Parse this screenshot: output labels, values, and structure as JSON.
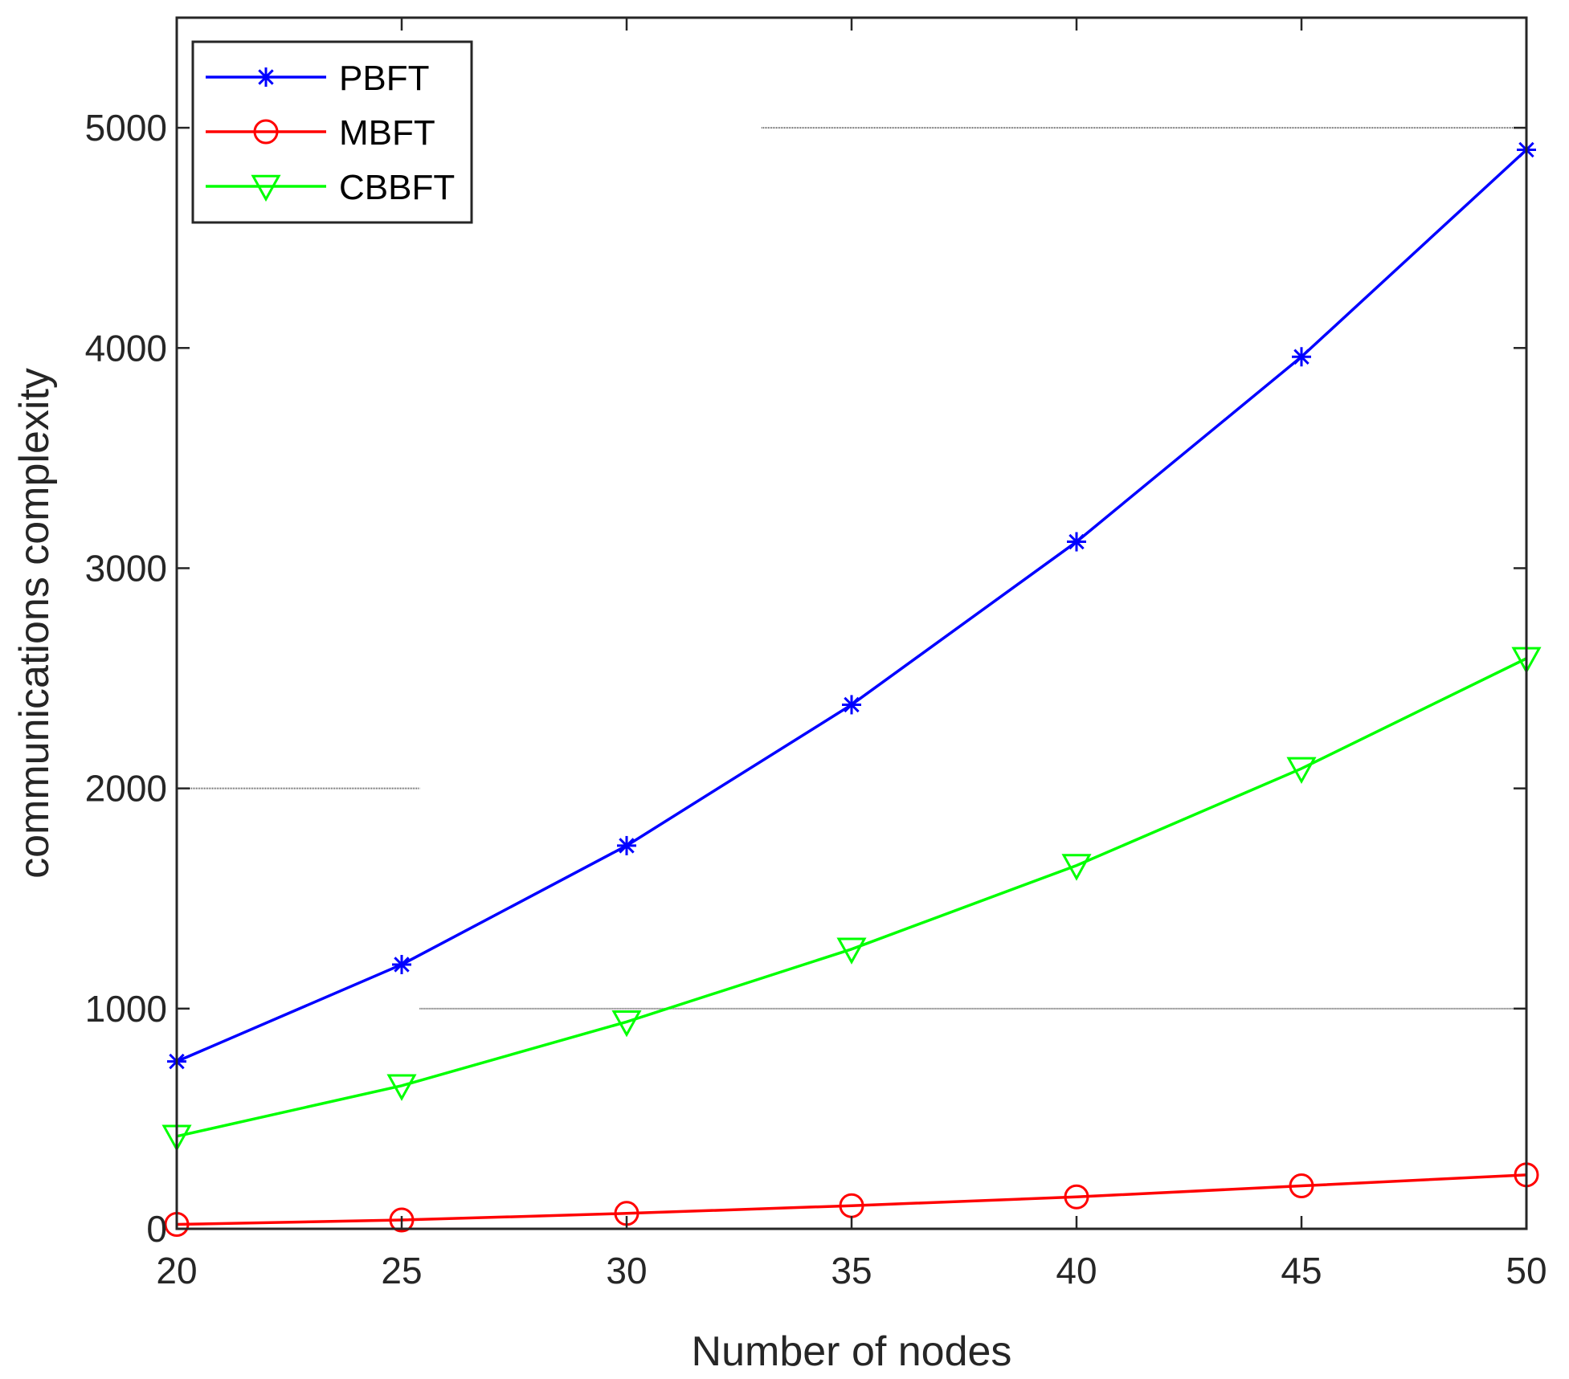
{
  "chart_data": {
    "type": "line",
    "xlabel": "Number of nodes",
    "ylabel": "communications complexity",
    "x": [
      20,
      25,
      30,
      35,
      40,
      45,
      50
    ],
    "xlim": [
      20,
      50
    ],
    "ylim": [
      0,
      5500
    ],
    "xticks": [
      "20",
      "25",
      "30",
      "35",
      "40",
      "45",
      "50"
    ],
    "yticks": [
      "0",
      "1000",
      "2000",
      "3000",
      "4000",
      "5000"
    ],
    "grid": false,
    "legend_position": "top-left",
    "series": [
      {
        "name": "PBFT",
        "color": "#0000ff",
        "marker": "asterisk",
        "values": [
          760,
          1200,
          1740,
          2380,
          3120,
          3960,
          4900
        ]
      },
      {
        "name": "MBFT",
        "color": "#ff0000",
        "marker": "circle",
        "values": [
          20,
          40,
          70,
          105,
          145,
          195,
          245
        ]
      },
      {
        "name": "CBBFT",
        "color": "#00ff00",
        "marker": "triangle-down",
        "values": [
          420,
          650,
          940,
          1270,
          1650,
          2090,
          2590
        ]
      }
    ]
  }
}
